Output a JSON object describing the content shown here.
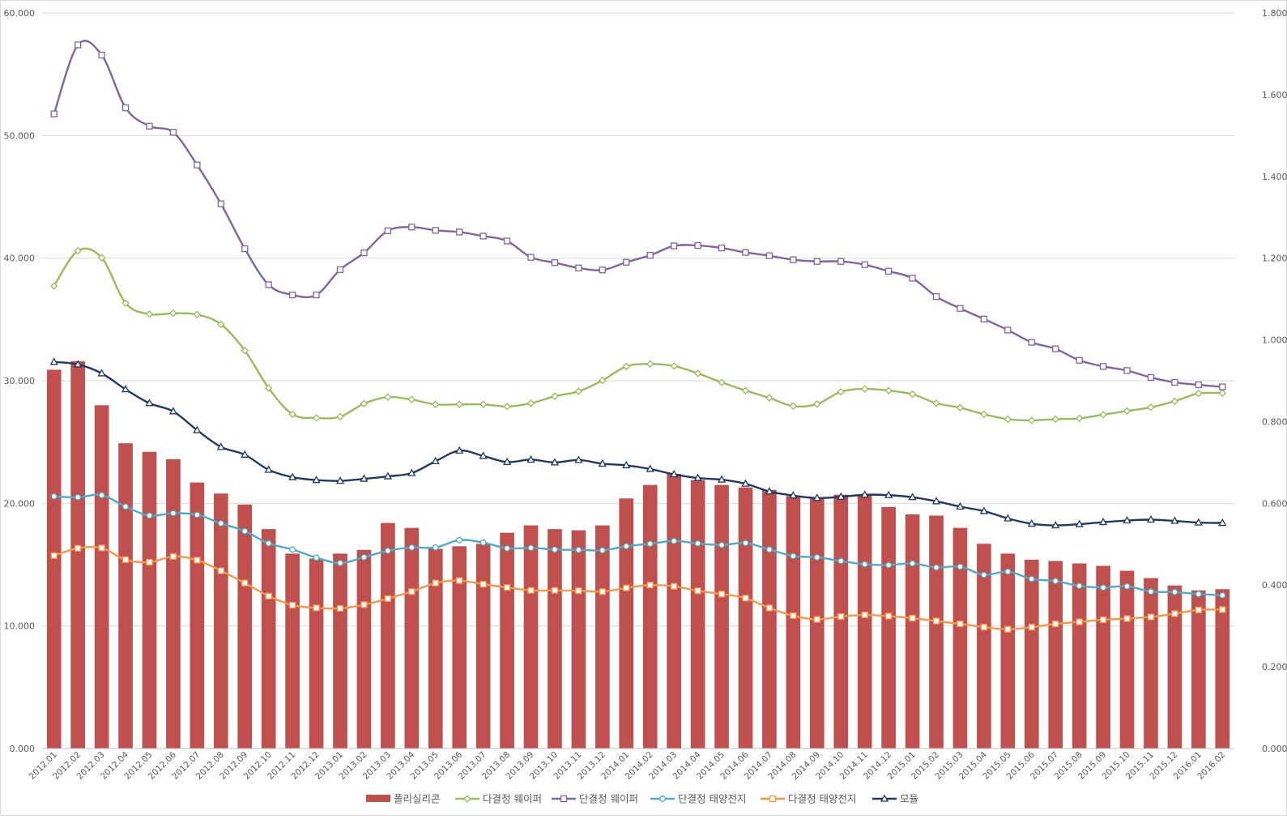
{
  "chart_data": {
    "type": "bar",
    "title": "",
    "xlabel": "",
    "ylabel": "",
    "ylim": [
      0,
      60000
    ],
    "y2lim": [
      0,
      1.8
    ],
    "y_ticks": [
      "0.000",
      "10.000",
      "20.000",
      "30.000",
      "40.000",
      "50.000",
      "60.000"
    ],
    "y2_ticks": [
      "0.000",
      "0.200",
      "0.400",
      "0.600",
      "0.800",
      "1.000",
      "1.200",
      "1.400",
      "1.600",
      "1.800"
    ],
    "grid": true,
    "legend_position": "bottom",
    "categories": [
      "2012.01",
      "2012.02",
      "2012.03",
      "2012.04",
      "2012.05",
      "2012.06",
      "2012.07",
      "2012.08",
      "2012.09",
      "2012.10",
      "2012.11",
      "2012.12",
      "2013.01",
      "2013.02",
      "2013.03",
      "2013.04",
      "2013.05",
      "2013.06",
      "2013.07",
      "2013.08",
      "2013.09",
      "2013.10",
      "2013.11",
      "2013.12",
      "2014.01",
      "2014.02",
      "2014.03",
      "2014.04",
      "2014.05",
      "2014.06",
      "2014.07",
      "2014.08",
      "2014.09",
      "2014.10",
      "2014.11",
      "2014.12",
      "2015.01",
      "2015.02",
      "2015.03",
      "2015.04",
      "2015.05",
      "2015.06",
      "2015.07",
      "2015.08",
      "2015.09",
      "2015.10",
      "2015.11",
      "2015.12",
      "2016.01",
      "2016.02"
    ],
    "series": [
      {
        "name": "폴리실리콘",
        "type": "bar",
        "axis": "left",
        "color": "#C0504D",
        "values": [
          30900,
          31600,
          28000,
          24900,
          24200,
          23600,
          21700,
          20800,
          19900,
          17900,
          15900,
          15500,
          15900,
          16200,
          18400,
          18000,
          16300,
          16500,
          16700,
          17600,
          18200,
          17900,
          17800,
          18200,
          20400,
          21500,
          22400,
          21900,
          21500,
          21300,
          21100,
          20600,
          20400,
          20700,
          20700,
          19700,
          19100,
          19000,
          18000,
          16700,
          15900,
          15400,
          15300,
          15100,
          14900,
          14500,
          13900,
          13300,
          12900,
          13000
        ]
      },
      {
        "name": "다결정 웨이퍼",
        "type": "line",
        "axis": "right",
        "color": "#9BBB59",
        "marker": "diamond",
        "values": [
          1.132,
          1.218,
          1.201,
          1.09,
          1.063,
          1.065,
          1.062,
          1.038,
          0.974,
          0.882,
          0.818,
          0.809,
          0.812,
          0.844,
          0.86,
          0.854,
          0.842,
          0.842,
          0.842,
          0.837,
          0.845,
          0.862,
          0.874,
          0.901,
          0.935,
          0.941,
          0.936,
          0.918,
          0.896,
          0.876,
          0.858,
          0.838,
          0.843,
          0.873,
          0.88,
          0.876,
          0.867,
          0.845,
          0.834,
          0.818,
          0.806,
          0.803,
          0.806,
          0.808,
          0.817,
          0.826,
          0.835,
          0.85,
          0.869,
          0.87
        ]
      },
      {
        "name": "단결정 웨이퍼",
        "type": "line",
        "axis": "right",
        "color": "#8064A2",
        "marker": "square",
        "values": [
          1.553,
          1.722,
          1.697,
          1.568,
          1.523,
          1.508,
          1.428,
          1.333,
          1.223,
          1.135,
          1.11,
          1.11,
          1.172,
          1.213,
          1.267,
          1.276,
          1.268,
          1.264,
          1.254,
          1.242,
          1.202,
          1.189,
          1.176,
          1.171,
          1.19,
          1.207,
          1.23,
          1.231,
          1.225,
          1.214,
          1.206,
          1.196,
          1.192,
          1.192,
          1.184,
          1.168,
          1.151,
          1.106,
          1.077,
          1.051,
          1.024,
          0.994,
          0.978,
          0.95,
          0.935,
          0.925,
          0.908,
          0.896,
          0.89,
          0.885
        ]
      },
      {
        "name": "단결정 태양전지",
        "type": "line",
        "axis": "right",
        "color": "#4BACC6",
        "marker": "circle",
        "values": [
          0.617,
          0.615,
          0.62,
          0.592,
          0.57,
          0.576,
          0.572,
          0.551,
          0.532,
          0.502,
          0.487,
          0.467,
          0.454,
          0.468,
          0.484,
          0.492,
          0.492,
          0.51,
          0.504,
          0.49,
          0.491,
          0.487,
          0.486,
          0.485,
          0.495,
          0.501,
          0.508,
          0.502,
          0.498,
          0.503,
          0.487,
          0.471,
          0.468,
          0.459,
          0.451,
          0.449,
          0.453,
          0.443,
          0.445,
          0.425,
          0.433,
          0.415,
          0.41,
          0.398,
          0.394,
          0.397,
          0.384,
          0.383,
          0.378,
          0.375
        ]
      },
      {
        "name": "다결정 태양전지",
        "type": "line",
        "axis": "right",
        "color": "#F79646",
        "marker": "square",
        "values": [
          0.472,
          0.49,
          0.491,
          0.462,
          0.456,
          0.47,
          0.461,
          0.435,
          0.405,
          0.373,
          0.351,
          0.344,
          0.343,
          0.352,
          0.367,
          0.384,
          0.405,
          0.411,
          0.402,
          0.394,
          0.387,
          0.387,
          0.386,
          0.384,
          0.393,
          0.4,
          0.397,
          0.386,
          0.378,
          0.368,
          0.344,
          0.325,
          0.316,
          0.323,
          0.327,
          0.324,
          0.319,
          0.312,
          0.305,
          0.297,
          0.292,
          0.297,
          0.305,
          0.31,
          0.315,
          0.318,
          0.322,
          0.33,
          0.339,
          0.34
        ]
      },
      {
        "name": "모듈",
        "type": "line",
        "axis": "right",
        "color": "#1F3864",
        "marker": "triangle",
        "values": [
          0.946,
          0.94,
          0.918,
          0.879,
          0.845,
          0.825,
          0.779,
          0.738,
          0.719,
          0.682,
          0.664,
          0.657,
          0.655,
          0.66,
          0.666,
          0.674,
          0.703,
          0.729,
          0.716,
          0.701,
          0.707,
          0.7,
          0.706,
          0.697,
          0.693,
          0.684,
          0.671,
          0.662,
          0.658,
          0.648,
          0.629,
          0.619,
          0.613,
          0.616,
          0.621,
          0.62,
          0.615,
          0.605,
          0.592,
          0.581,
          0.563,
          0.55,
          0.546,
          0.549,
          0.554,
          0.558,
          0.56,
          0.557,
          0.553,
          0.552
        ]
      }
    ]
  }
}
